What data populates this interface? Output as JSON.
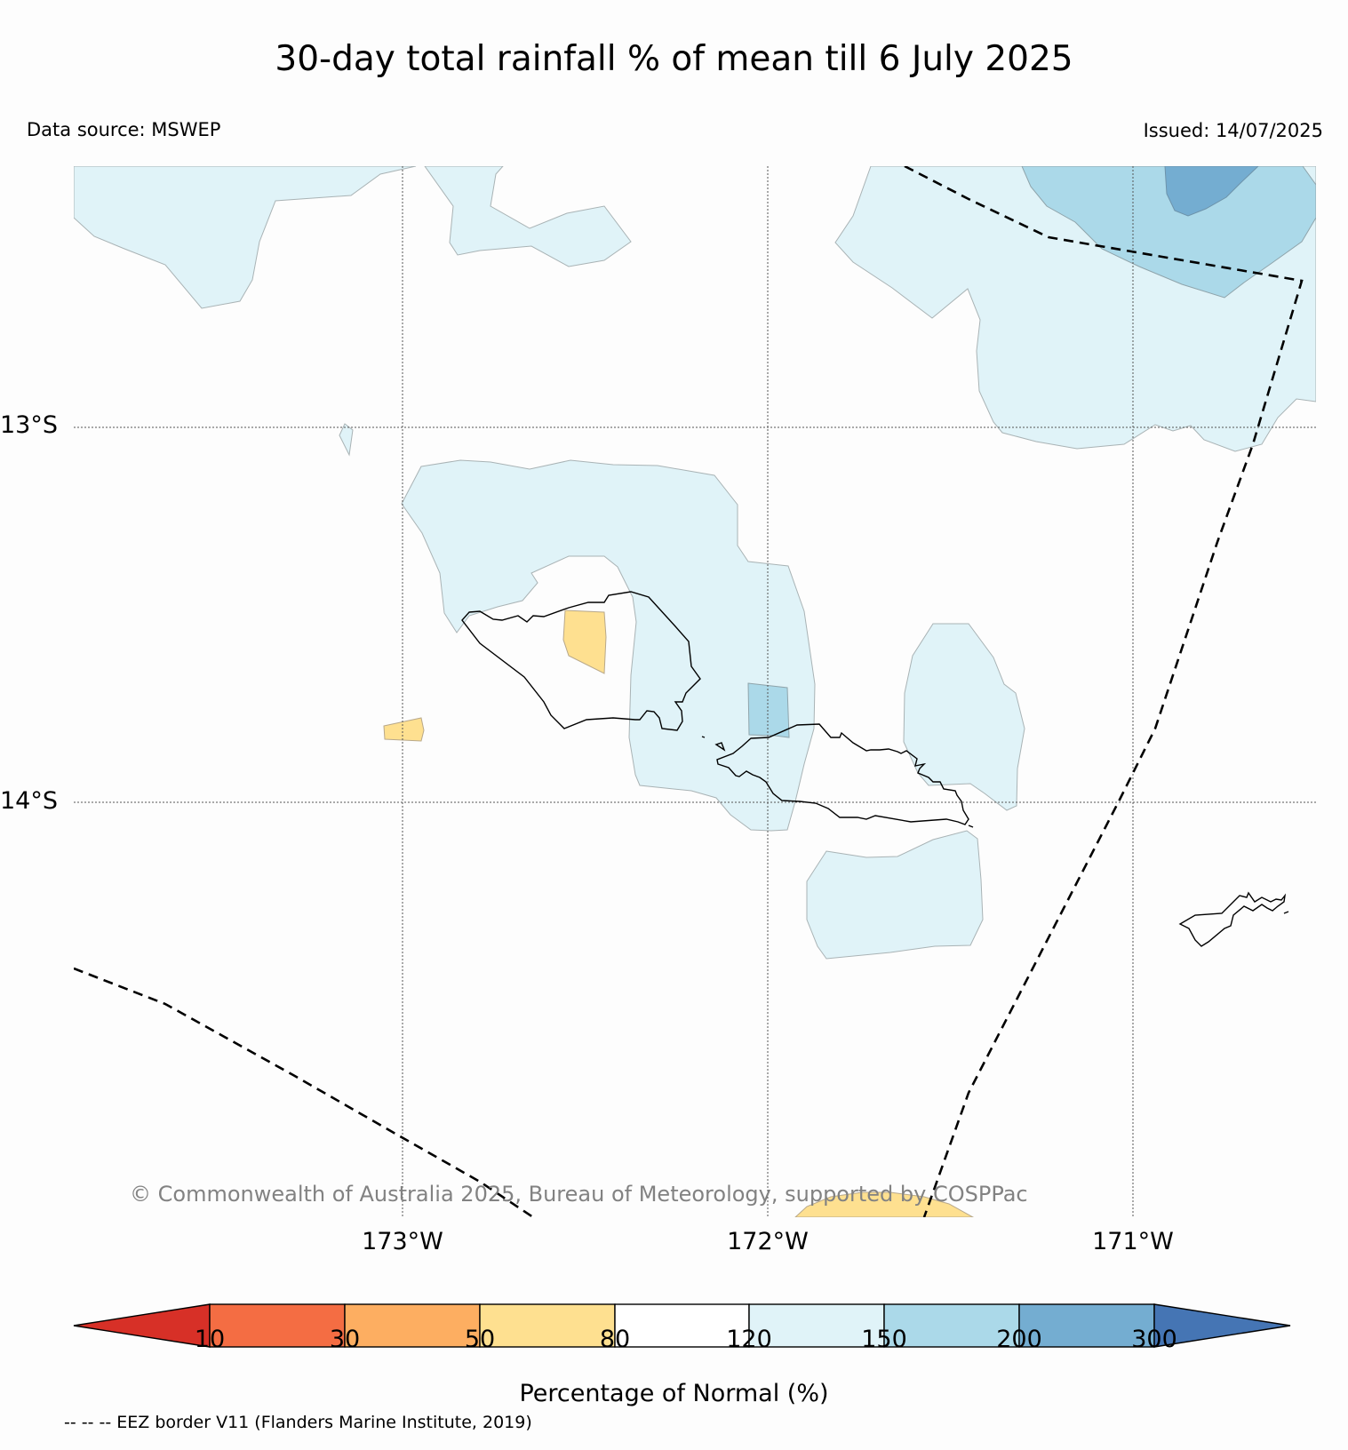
{
  "header": {
    "title": "30-day total rainfall % of mean till 6 July 2025",
    "data_source": "Data source: MSWEP",
    "issued": "Issued: 14/07/2025"
  },
  "map": {
    "lat_labels": [
      "13°S",
      "14°S"
    ],
    "lon_labels": [
      "173°W",
      "172°W",
      "171°W"
    ],
    "copyright": "© Commonwealth of Australia 2025, Bureau of Meteorology, supported by COSPPac",
    "eez_legend": "-- -- -- EEZ border V11 (Flanders Marine Institute, 2019)"
  },
  "colorbar": {
    "title": "Percentage of Normal (%)",
    "ticks": [
      "10",
      "30",
      "50",
      "80",
      "120",
      "150",
      "200",
      "300"
    ],
    "colors": [
      "#d73027",
      "#f46d43",
      "#fdae61",
      "#fee090",
      "#ffffff",
      "#e0f3f8",
      "#abd9e9",
      "#74add1",
      "#4575b4"
    ]
  }
}
